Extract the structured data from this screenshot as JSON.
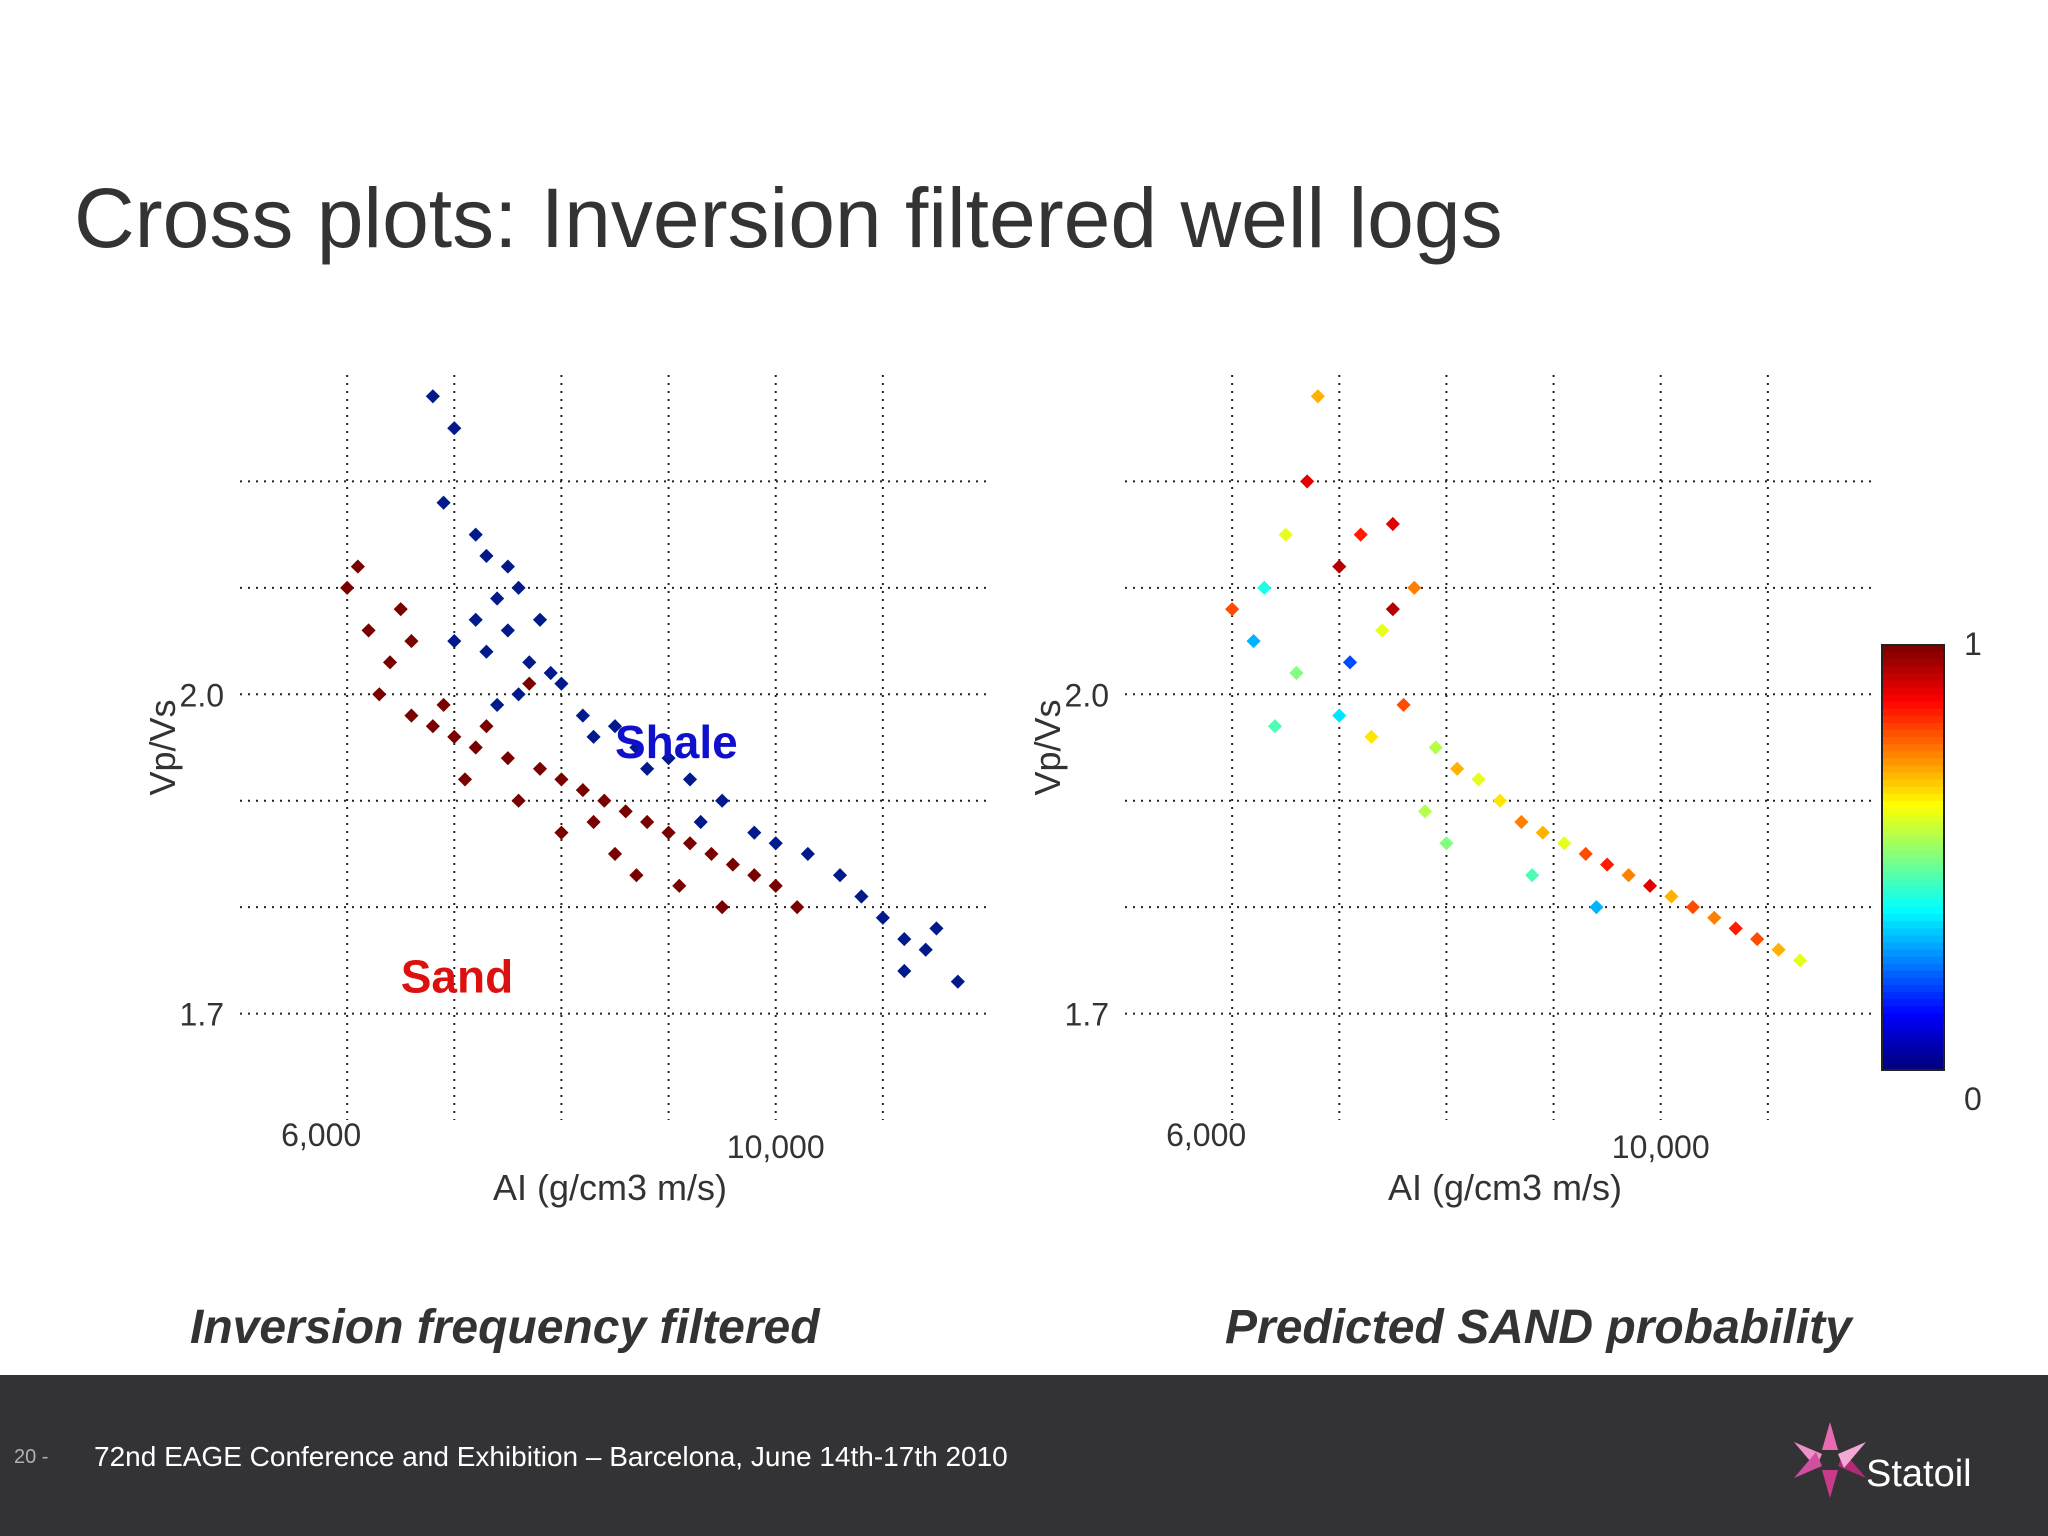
{
  "slide": {
    "title": "Cross plots: Inversion filtered well logs",
    "page_number": "20 -",
    "footer": "72nd EAGE Conference and Exhibition – Barcelona, June 14th-17th 2010",
    "logo_text": "Statoil",
    "captions": {
      "left": "Inversion frequency filtered",
      "right": "Predicted SAND probability"
    }
  },
  "chart_data": [
    {
      "type": "scatter",
      "xlabel": "AI (g/cm3 m/s)",
      "ylabel": "Vp/Vs",
      "xticks": [
        "6,000",
        "10,000"
      ],
      "yticks": [
        "2.0",
        "1.7"
      ],
      "xlim": [
        5000,
        12000
      ],
      "ylim": [
        1.6,
        2.3
      ],
      "grid": true,
      "annotations": [
        {
          "text": "Shale",
          "color": "#1010cc"
        },
        {
          "text": "Sand",
          "color": "#dd1010"
        }
      ],
      "series": [
        {
          "color": "#001a8c",
          "points": [
            [
              6800,
              2.28
            ],
            [
              7000,
              2.25
            ],
            [
              6900,
              2.18
            ],
            [
              7200,
              2.15
            ],
            [
              7300,
              2.13
            ],
            [
              7500,
              2.12
            ],
            [
              7400,
              2.09
            ],
            [
              7600,
              2.1
            ],
            [
              7200,
              2.07
            ],
            [
              7500,
              2.06
            ],
            [
              7800,
              2.07
            ],
            [
              7000,
              2.05
            ],
            [
              7300,
              2.04
            ],
            [
              7700,
              2.03
            ],
            [
              7900,
              2.02
            ],
            [
              8000,
              2.01
            ],
            [
              7600,
              2.0
            ],
            [
              7400,
              1.99
            ],
            [
              8200,
              1.98
            ],
            [
              8500,
              1.97
            ],
            [
              8300,
              1.96
            ],
            [
              8700,
              1.95
            ],
            [
              9000,
              1.94
            ],
            [
              8800,
              1.93
            ],
            [
              9200,
              1.92
            ],
            [
              9500,
              1.9
            ],
            [
              9300,
              1.88
            ],
            [
              9800,
              1.87
            ],
            [
              10000,
              1.86
            ],
            [
              10300,
              1.85
            ],
            [
              10600,
              1.83
            ],
            [
              10800,
              1.81
            ],
            [
              11000,
              1.79
            ],
            [
              11200,
              1.77
            ],
            [
              11400,
              1.76
            ],
            [
              11500,
              1.78
            ],
            [
              11200,
              1.74
            ],
            [
              11700,
              1.73
            ]
          ]
        },
        {
          "color": "#7a0000",
          "points": [
            [
              6000,
              2.1
            ],
            [
              6200,
              2.06
            ],
            [
              6400,
              2.03
            ],
            [
              6300,
              2.0
            ],
            [
              6600,
              1.98
            ],
            [
              6800,
              1.97
            ],
            [
              7000,
              1.96
            ],
            [
              7200,
              1.95
            ],
            [
              7500,
              1.94
            ],
            [
              7800,
              1.93
            ],
            [
              8000,
              1.92
            ],
            [
              8200,
              1.91
            ],
            [
              8400,
              1.9
            ],
            [
              8600,
              1.89
            ],
            [
              8800,
              1.88
            ],
            [
              9000,
              1.87
            ],
            [
              9200,
              1.86
            ],
            [
              9400,
              1.85
            ],
            [
              9600,
              1.84
            ],
            [
              9800,
              1.83
            ],
            [
              10000,
              1.82
            ],
            [
              10200,
              1.8
            ],
            [
              8500,
              1.85
            ],
            [
              8000,
              1.87
            ],
            [
              7600,
              1.9
            ],
            [
              7100,
              1.92
            ],
            [
              6600,
              2.05
            ],
            [
              6500,
              2.08
            ],
            [
              6900,
              1.99
            ],
            [
              7300,
              1.97
            ],
            [
              8700,
              1.83
            ],
            [
              9100,
              1.82
            ],
            [
              9500,
              1.8
            ],
            [
              8300,
              1.88
            ],
            [
              7700,
              2.01
            ],
            [
              6100,
              2.12
            ]
          ]
        }
      ]
    },
    {
      "type": "scatter",
      "xlabel": "AI (g/cm3 m/s)",
      "ylabel": "Vp/Vs",
      "xticks": [
        "6,000",
        "10,000"
      ],
      "yticks": [
        "2.0",
        "1.7"
      ],
      "xlim": [
        5000,
        12000
      ],
      "ylim": [
        1.6,
        2.3
      ],
      "grid": true,
      "colorbar": {
        "min_label": "0",
        "max_label": "1",
        "colormap": "jet"
      },
      "series": [
        {
          "name": "",
          "points": [
            [
              6800,
              2.28,
              0.7
            ],
            [
              6700,
              2.2,
              0.9
            ],
            [
              6500,
              2.15,
              0.6
            ],
            [
              6300,
              2.1,
              0.4
            ],
            [
              6000,
              2.08,
              0.8
            ],
            [
              6200,
              2.05,
              0.3
            ],
            [
              6600,
              2.02,
              0.5
            ],
            [
              7000,
              2.12,
              0.95
            ],
            [
              7200,
              2.15,
              0.85
            ],
            [
              7500,
              2.16,
              0.9
            ],
            [
              7700,
              2.1,
              0.75
            ],
            [
              7400,
              2.06,
              0.6
            ],
            [
              7100,
              2.03,
              0.2
            ],
            [
              7000,
              1.98,
              0.35
            ],
            [
              7300,
              1.96,
              0.65
            ],
            [
              7600,
              1.99,
              0.8
            ],
            [
              7900,
              1.95,
              0.55
            ],
            [
              8100,
              1.93,
              0.7
            ],
            [
              8300,
              1.92,
              0.6
            ],
            [
              8500,
              1.9,
              0.65
            ],
            [
              8700,
              1.88,
              0.75
            ],
            [
              8900,
              1.87,
              0.7
            ],
            [
              9100,
              1.86,
              0.6
            ],
            [
              9300,
              1.85,
              0.8
            ],
            [
              9500,
              1.84,
              0.85
            ],
            [
              9700,
              1.83,
              0.75
            ],
            [
              9900,
              1.82,
              0.9
            ],
            [
              10100,
              1.81,
              0.7
            ],
            [
              10300,
              1.8,
              0.8
            ],
            [
              10500,
              1.79,
              0.75
            ],
            [
              10700,
              1.78,
              0.85
            ],
            [
              10900,
              1.77,
              0.8
            ],
            [
              11100,
              1.76,
              0.7
            ],
            [
              11300,
              1.75,
              0.6
            ],
            [
              8000,
              1.86,
              0.5
            ],
            [
              8800,
              1.83,
              0.45
            ],
            [
              9400,
              1.8,
              0.3
            ],
            [
              7800,
              1.89,
              0.55
            ],
            [
              6400,
              1.97,
              0.45
            ],
            [
              7500,
              2.08,
              0.95
            ]
          ]
        }
      ]
    }
  ]
}
